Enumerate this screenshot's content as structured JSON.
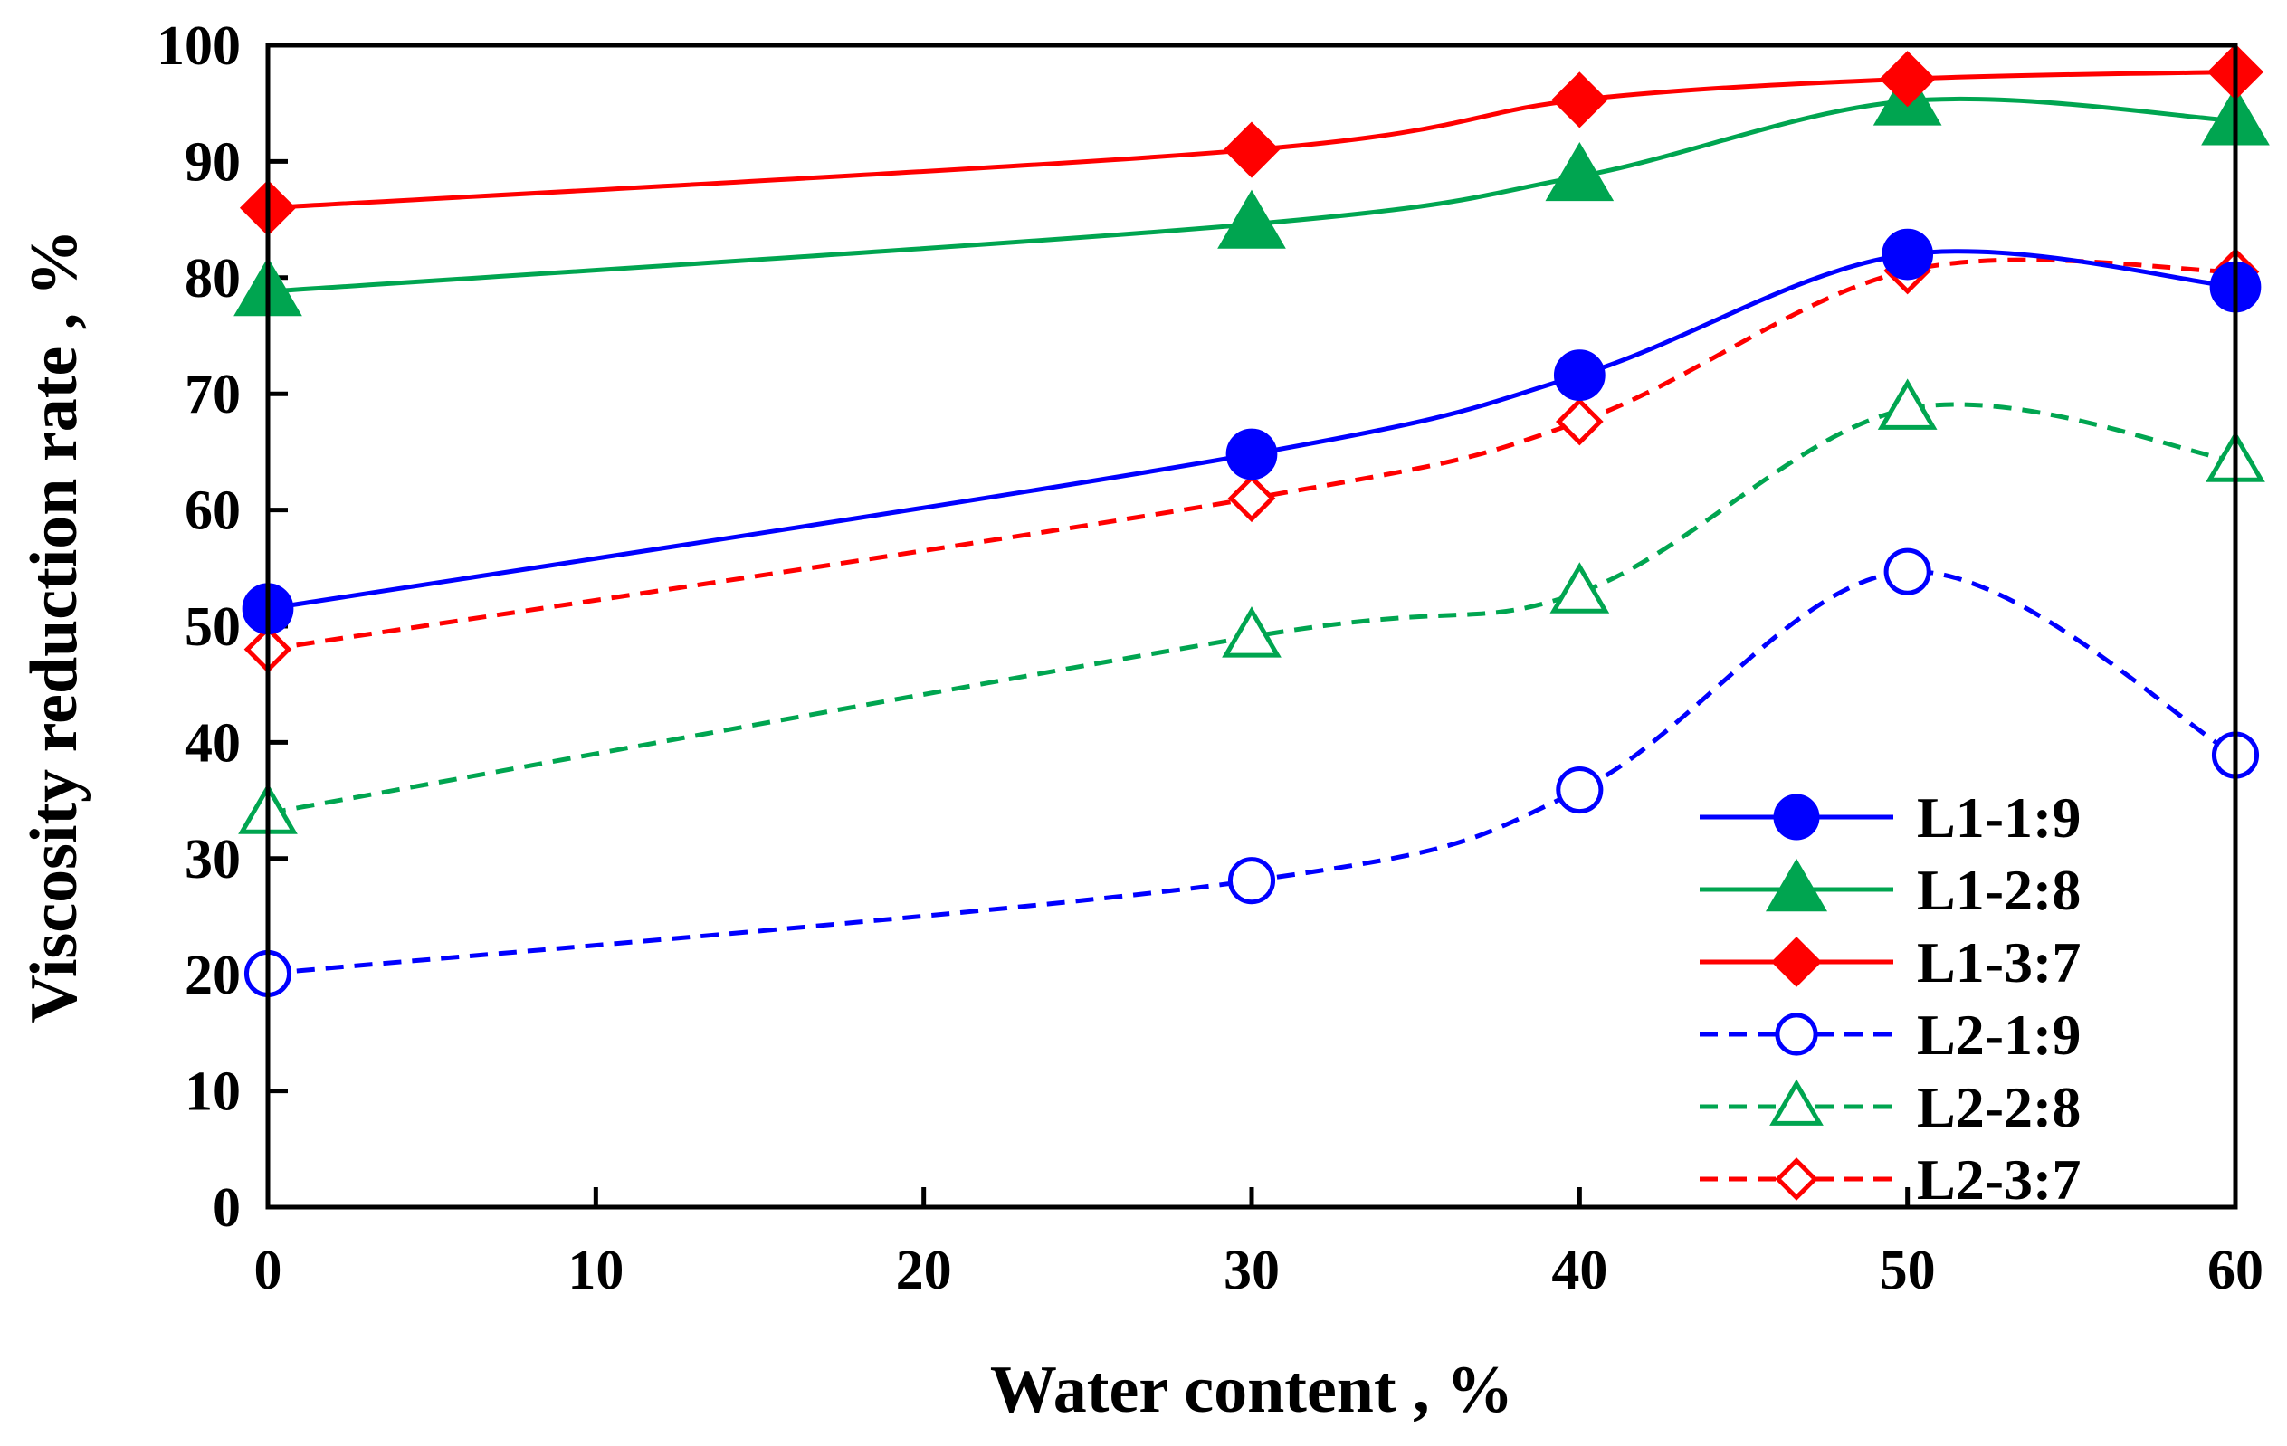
{
  "chart_data": {
    "type": "line",
    "title": "",
    "xlabel": "Water content , %",
    "ylabel": "Viscosity reduction rate , %",
    "xlim": [
      0,
      60
    ],
    "ylim": [
      0,
      100
    ],
    "xticks": [
      "0",
      "10",
      "20",
      "30",
      "40",
      "50",
      "60"
    ],
    "yticks": [
      "0",
      "10",
      "20",
      "30",
      "40",
      "50",
      "60",
      "70",
      "80",
      "90",
      "100"
    ],
    "grid": false,
    "legend_position": "bottom-right",
    "x": [
      0,
      30,
      40,
      50,
      60
    ],
    "series": [
      {
        "name": "L1-1:9",
        "values": [
          51.5,
          64.8,
          71.6,
          82.0,
          79.2
        ],
        "color": "#0000ff",
        "marker": "circle",
        "filled": true,
        "dashed": false
      },
      {
        "name": "L1-2:8",
        "values": [
          78.8,
          84.6,
          88.7,
          95.2,
          93.5
        ],
        "color": "#00a550",
        "marker": "triangle",
        "filled": true,
        "dashed": false
      },
      {
        "name": "L1-3:7",
        "values": [
          86.0,
          91.0,
          95.3,
          97.1,
          97.7
        ],
        "color": "#ff0000",
        "marker": "diamond",
        "filled": true,
        "dashed": false
      },
      {
        "name": "L2-1:9",
        "values": [
          20.1,
          28.1,
          35.9,
          54.7,
          38.9
        ],
        "color": "#0000ff",
        "marker": "circle",
        "filled": false,
        "dashed": true
      },
      {
        "name": "L2-2:8",
        "values": [
          33.9,
          49.1,
          52.9,
          68.7,
          64.2
        ],
        "color": "#00a550",
        "marker": "triangle",
        "filled": false,
        "dashed": true
      },
      {
        "name": "L2-3:7",
        "values": [
          48.0,
          61.0,
          67.6,
          80.6,
          80.5
        ],
        "color": "#ff0000",
        "marker": "diamond",
        "filled": false,
        "dashed": true
      }
    ]
  }
}
